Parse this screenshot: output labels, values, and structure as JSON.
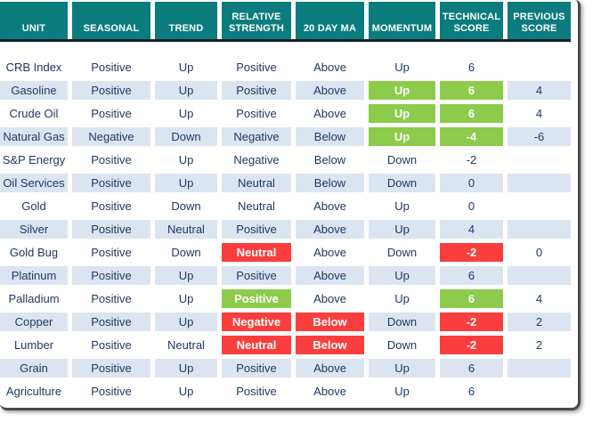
{
  "colors": {
    "teal": "#0b7c7d",
    "divider": "#161c2b",
    "stripe": "#dbe5f1",
    "green": "#8ccb4b",
    "red": "#f93e3d",
    "navy": "#1f3864",
    "frame": "#4a4a4a"
  },
  "chart_data": {
    "type": "table",
    "columns": [
      "UNIT",
      "SEASONAL",
      "TREND",
      "RELATIVE STRENGTH",
      "20 DAY MA",
      "MOMENTUM",
      "TECHNICAL SCORE",
      "PREVIOUS SCORE"
    ],
    "rows": [
      {
        "cells": [
          {
            "text": "CRB Index"
          },
          {
            "text": "Positive"
          },
          {
            "text": "Up"
          },
          {
            "text": "Positive"
          },
          {
            "text": "Above"
          },
          {
            "text": "Up"
          },
          {
            "text": "6"
          },
          {
            "text": ""
          }
        ]
      },
      {
        "cells": [
          {
            "text": "Gasoline"
          },
          {
            "text": "Positive"
          },
          {
            "text": "Up"
          },
          {
            "text": "Positive"
          },
          {
            "text": "Above"
          },
          {
            "text": "Up",
            "hl": "green"
          },
          {
            "text": "6",
            "hl": "green"
          },
          {
            "text": "4"
          }
        ]
      },
      {
        "cells": [
          {
            "text": "Crude Oil"
          },
          {
            "text": "Positive"
          },
          {
            "text": "Up"
          },
          {
            "text": "Positive"
          },
          {
            "text": "Above"
          },
          {
            "text": "Up",
            "hl": "green"
          },
          {
            "text": "6",
            "hl": "green"
          },
          {
            "text": "4"
          }
        ]
      },
      {
        "cells": [
          {
            "text": "Natural Gas"
          },
          {
            "text": "Negative"
          },
          {
            "text": "Down"
          },
          {
            "text": "Negative"
          },
          {
            "text": "Below"
          },
          {
            "text": "Up",
            "hl": "green"
          },
          {
            "text": "-4",
            "hl": "green"
          },
          {
            "text": "-6"
          }
        ]
      },
      {
        "cells": [
          {
            "text": "S&P Energy"
          },
          {
            "text": "Positive"
          },
          {
            "text": "Up"
          },
          {
            "text": "Negative"
          },
          {
            "text": "Below"
          },
          {
            "text": "Down"
          },
          {
            "text": "-2"
          },
          {
            "text": ""
          }
        ]
      },
      {
        "cells": [
          {
            "text": "Oil Services"
          },
          {
            "text": "Positive"
          },
          {
            "text": "Up"
          },
          {
            "text": "Neutral"
          },
          {
            "text": "Below"
          },
          {
            "text": "Down"
          },
          {
            "text": "0"
          },
          {
            "text": ""
          }
        ]
      },
      {
        "cells": [
          {
            "text": "Gold"
          },
          {
            "text": "Positive"
          },
          {
            "text": "Down"
          },
          {
            "text": "Neutral"
          },
          {
            "text": "Above"
          },
          {
            "text": "Up"
          },
          {
            "text": "0"
          },
          {
            "text": ""
          }
        ]
      },
      {
        "cells": [
          {
            "text": "Silver"
          },
          {
            "text": "Positive"
          },
          {
            "text": "Neutral"
          },
          {
            "text": "Positive"
          },
          {
            "text": "Above"
          },
          {
            "text": "Up"
          },
          {
            "text": "4"
          },
          {
            "text": ""
          }
        ]
      },
      {
        "cells": [
          {
            "text": "Gold Bug"
          },
          {
            "text": "Positive"
          },
          {
            "text": "Down"
          },
          {
            "text": "Neutral",
            "hl": "red"
          },
          {
            "text": "Above"
          },
          {
            "text": "Down"
          },
          {
            "text": "-2",
            "hl": "red"
          },
          {
            "text": "0"
          }
        ]
      },
      {
        "cells": [
          {
            "text": "Platinum"
          },
          {
            "text": "Positive"
          },
          {
            "text": "Up"
          },
          {
            "text": "Positive"
          },
          {
            "text": "Above"
          },
          {
            "text": "Up"
          },
          {
            "text": "6"
          },
          {
            "text": ""
          }
        ]
      },
      {
        "cells": [
          {
            "text": "Palladium"
          },
          {
            "text": "Positive"
          },
          {
            "text": "Up"
          },
          {
            "text": "Positive",
            "hl": "green"
          },
          {
            "text": "Above"
          },
          {
            "text": "Up"
          },
          {
            "text": "6",
            "hl": "green"
          },
          {
            "text": "4"
          }
        ]
      },
      {
        "cells": [
          {
            "text": "Copper"
          },
          {
            "text": "Positive"
          },
          {
            "text": "Up"
          },
          {
            "text": "Negative",
            "hl": "red"
          },
          {
            "text": "Below",
            "hl": "red"
          },
          {
            "text": "Down"
          },
          {
            "text": "-2",
            "hl": "red"
          },
          {
            "text": "2"
          }
        ]
      },
      {
        "cells": [
          {
            "text": "Lumber"
          },
          {
            "text": "Positive"
          },
          {
            "text": "Neutral"
          },
          {
            "text": "Neutral",
            "hl": "red"
          },
          {
            "text": "Below",
            "hl": "red"
          },
          {
            "text": "Down"
          },
          {
            "text": "-2",
            "hl": "red"
          },
          {
            "text": "2"
          }
        ]
      },
      {
        "cells": [
          {
            "text": "Grain"
          },
          {
            "text": "Positive"
          },
          {
            "text": "Up"
          },
          {
            "text": "Positive"
          },
          {
            "text": "Above"
          },
          {
            "text": "Up"
          },
          {
            "text": "6"
          },
          {
            "text": ""
          }
        ]
      },
      {
        "cells": [
          {
            "text": "Agriculture"
          },
          {
            "text": "Positive"
          },
          {
            "text": "Up"
          },
          {
            "text": "Positive"
          },
          {
            "text": "Above"
          },
          {
            "text": "Up"
          },
          {
            "text": "6"
          },
          {
            "text": ""
          }
        ]
      }
    ]
  }
}
